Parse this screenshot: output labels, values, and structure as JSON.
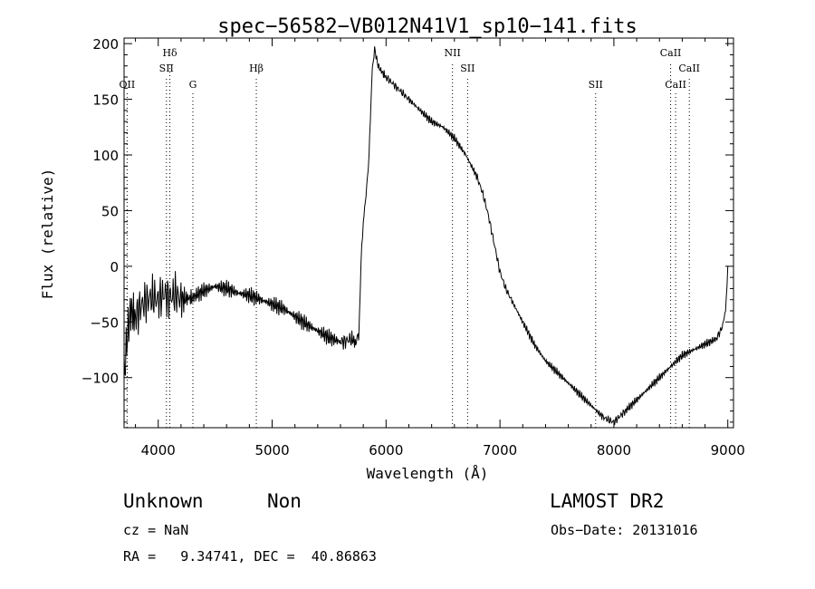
{
  "chart_data": {
    "type": "line",
    "title": "spec−56582−VB012N41V1_sp10−141.fits",
    "xlabel": "Wavelength (Å)",
    "ylabel": "Flux (relative)",
    "xlim": [
      3700,
      9050
    ],
    "ylim": [
      -145,
      205
    ],
    "xticks": [
      4000,
      5000,
      6000,
      7000,
      8000,
      9000
    ],
    "yticks": [
      -100,
      -50,
      0,
      50,
      100,
      150,
      200
    ],
    "xtick_labels": [
      "4000",
      "5000",
      "6000",
      "7000",
      "8000",
      "9000"
    ],
    "ytick_labels": [
      "−100",
      "−50",
      "0",
      "50",
      "100",
      "150",
      "200"
    ],
    "grid": false,
    "line_color": "#000000",
    "series": [
      {
        "x": [
          3700,
          3730,
          3760,
          3800,
          3850,
          3900,
          3950,
          4000,
          4050,
          4100,
          4150,
          4200,
          4300,
          4400,
          4500,
          4600,
          4700,
          4800,
          4900,
          5000,
          5100,
          5200,
          5300,
          5400,
          5500,
          5600,
          5650,
          5700,
          5740,
          5760,
          5780,
          5800,
          5830,
          5850,
          5880,
          5900,
          5930,
          5960,
          6000,
          6050,
          6100,
          6150,
          6200,
          6300,
          6400,
          6500,
          6600,
          6700,
          6800,
          6850,
          6900,
          6950,
          7000,
          7050,
          7100,
          7200,
          7300,
          7400,
          7500,
          7600,
          7700,
          7800,
          7900,
          7950,
          8000,
          8050,
          8100,
          8200,
          8300,
          8400,
          8500,
          8600,
          8700,
          8800,
          8900,
          8950,
          8980,
          9000
        ],
        "y": [
          -100,
          -60,
          -40,
          -45,
          -35,
          -30,
          -28,
          -30,
          -25,
          -28,
          -25,
          -30,
          -28,
          -22,
          -18,
          -20,
          -24,
          -26,
          -30,
          -34,
          -38,
          -45,
          -52,
          -58,
          -64,
          -68,
          -67,
          -65,
          -70,
          -60,
          0,
          40,
          70,
          100,
          180,
          195,
          180,
          175,
          170,
          165,
          160,
          155,
          150,
          140,
          130,
          125,
          115,
          100,
          80,
          65,
          45,
          20,
          -5,
          -20,
          -30,
          -50,
          -70,
          -85,
          -95,
          -105,
          -115,
          -125,
          -135,
          -138,
          -140,
          -135,
          -130,
          -120,
          -110,
          -100,
          -90,
          -80,
          -75,
          -70,
          -65,
          -55,
          -40,
          0
        ]
      }
    ],
    "lines": [
      {
        "label": "OII",
        "x": 3727,
        "label_row": 3
      },
      {
        "label": "Hδ",
        "x": 4102,
        "label_row": 1
      },
      {
        "label": "SII",
        "x": 4072,
        "label_row": 2
      },
      {
        "label": "G",
        "x": 4304,
        "label_row": 3
      },
      {
        "label": "Hβ",
        "x": 4861,
        "label_row": 2
      },
      {
        "label": "NII",
        "x": 6583,
        "label_row": 1
      },
      {
        "label": "SII",
        "x": 6716,
        "label_row": 2
      },
      {
        "label": "SII",
        "x": 7840,
        "label_row": 3
      },
      {
        "label": "CaII",
        "x": 8498,
        "label_row": 1
      },
      {
        "label": "CaII",
        "x": 8542,
        "label_row": 3
      },
      {
        "label": "CaII",
        "x": 8662,
        "label_row": 2
      }
    ]
  },
  "info": {
    "class": "Unknown",
    "subclass": "Non",
    "survey": "LAMOST DR2",
    "cz": "cz = NaN",
    "obs_date": "Obs−Date: 20131016",
    "coords": "RA =   9.34741, DEC =  40.86863"
  }
}
